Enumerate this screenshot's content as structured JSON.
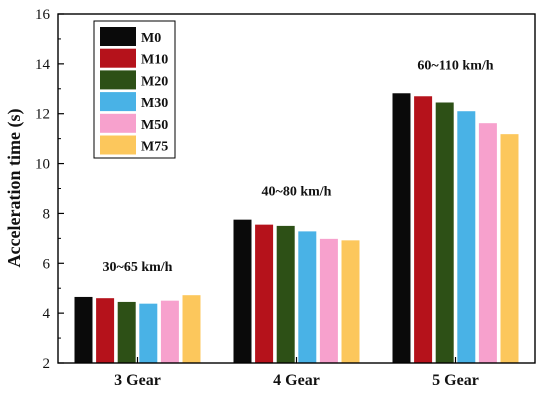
{
  "chart_data": {
    "type": "bar",
    "title": "",
    "xlabel": "",
    "ylabel": "Acceleration time (s)",
    "ylim": [
      2,
      16
    ],
    "yticks": [
      2,
      4,
      6,
      8,
      10,
      12,
      14,
      16
    ],
    "grid": false,
    "legend_position": "top-left",
    "categories": [
      "3 Gear",
      "4 Gear",
      "5 Gear"
    ],
    "annotations": [
      "30~65 km/h",
      "40~80 km/h",
      "60~110 km/h"
    ],
    "series": [
      {
        "name": "M0",
        "color": "#0a0a0a",
        "values": [
          4.65,
          7.75,
          12.82
        ]
      },
      {
        "name": "M10",
        "color": "#b5121b",
        "values": [
          4.6,
          7.55,
          12.7
        ]
      },
      {
        "name": "M20",
        "color": "#2d5016",
        "values": [
          4.45,
          7.5,
          12.45
        ]
      },
      {
        "name": "M30",
        "color": "#49b2e6",
        "values": [
          4.38,
          7.28,
          12.1
        ]
      },
      {
        "name": "M50",
        "color": "#f7a1cd",
        "values": [
          4.5,
          6.98,
          11.62
        ]
      },
      {
        "name": "M75",
        "color": "#fcc75c",
        "values": [
          4.72,
          6.92,
          11.18
        ]
      }
    ]
  }
}
